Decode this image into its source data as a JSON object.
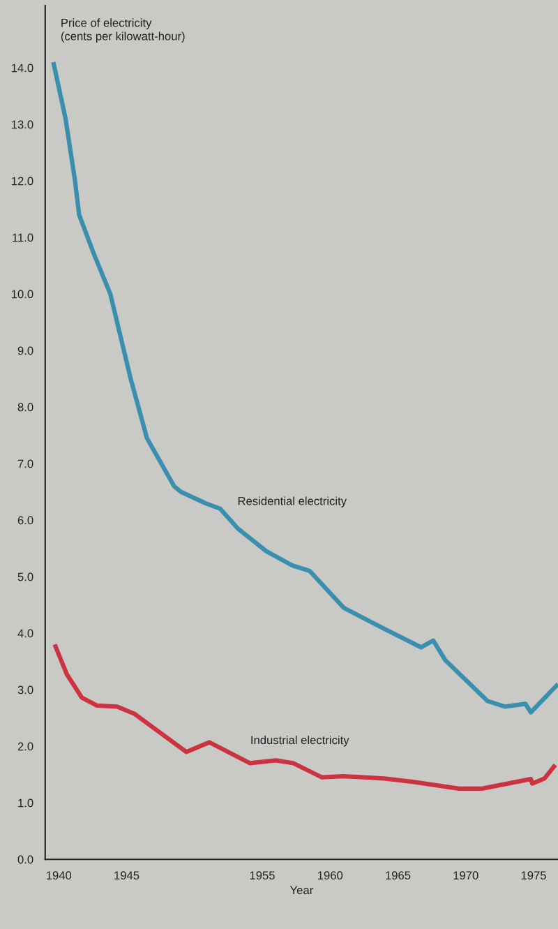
{
  "chart_data": {
    "type": "line",
    "ylabel": "Price of electricity\n(cents per kilowatt-hour)",
    "xlabel": "Year",
    "xlim": [
      1939,
      1976.8
    ],
    "xticks": [
      1940,
      1945,
      1955,
      1960,
      1965,
      1970,
      1975
    ],
    "ylim": [
      0,
      15.1
    ],
    "yticks": [
      {
        "value": 0,
        "label": "0.0"
      },
      {
        "value": 1,
        "label": "1.0"
      },
      {
        "value": 2,
        "label": "2.0"
      },
      {
        "value": 3,
        "label": "3.0"
      },
      {
        "value": 4,
        "label": "4.0"
      },
      {
        "value": 5,
        "label": "5.0"
      },
      {
        "value": 6,
        "label": "6.0"
      },
      {
        "value": 7,
        "label": "7.0"
      },
      {
        "value": 8,
        "label": "8.0"
      },
      {
        "value": 9,
        "label": "9.0"
      },
      {
        "value": 10,
        "label": "10.0"
      },
      {
        "value": 11,
        "label": "11.0"
      },
      {
        "value": 12,
        "label": "12.0"
      },
      {
        "value": 13,
        "label": "13.0"
      },
      {
        "value": 14,
        "label": "14.0"
      }
    ],
    "grid": false,
    "legend": false,
    "marker": "none",
    "line_style": "solid",
    "series": [
      {
        "name": "Residential electricity",
        "color": "#3a8fae",
        "x": [
          1939.6,
          1940.5,
          1941.2,
          1941.5,
          1942.6,
          1943.8,
          1944.5,
          1945.3,
          1946.5,
          1948.5,
          1949.0,
          1950.8,
          1951.9,
          1953.2,
          1955.3,
          1957.2,
          1958.5,
          1961.0,
          1963.8,
          1966.7,
          1967.6,
          1968.5,
          1971.6,
          1972.9,
          1974.4,
          1974.8,
          1976.8
        ],
        "values": [
          14.1,
          13.1,
          12.0,
          11.4,
          10.7,
          10.0,
          9.3,
          8.5,
          7.45,
          6.6,
          6.5,
          6.3,
          6.2,
          5.85,
          5.45,
          5.2,
          5.1,
          4.45,
          4.1,
          3.75,
          3.87,
          3.52,
          2.8,
          2.7,
          2.75,
          2.6,
          3.1
        ]
      },
      {
        "name": "Industrial electricity",
        "color": "#cc3340",
        "x": [
          1939.7,
          1940.6,
          1941.7,
          1942.8,
          1944.3,
          1945.6,
          1949.4,
          1951.1,
          1954.1,
          1956.0,
          1957.3,
          1959.4,
          1961.0,
          1964.0,
          1966.1,
          1969.5,
          1971.2,
          1974.8,
          1974.9,
          1975.8,
          1976.6
        ],
        "values": [
          3.8,
          3.27,
          2.86,
          2.72,
          2.7,
          2.57,
          1.9,
          2.07,
          1.7,
          1.75,
          1.7,
          1.45,
          1.47,
          1.43,
          1.37,
          1.25,
          1.25,
          1.42,
          1.34,
          1.43,
          1.67
        ]
      }
    ]
  }
}
